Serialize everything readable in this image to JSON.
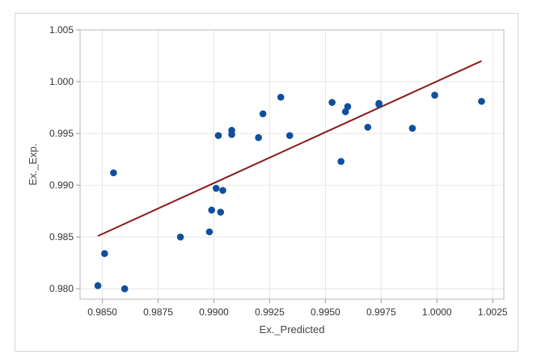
{
  "chart_data": {
    "type": "scatter",
    "xlabel": "Ex._Predicted",
    "ylabel": "Ex._Exp.",
    "xlim": [
      0.984,
      1.003
    ],
    "ylim": [
      0.979,
      1.005
    ],
    "x_ticks": [
      0.985,
      0.9875,
      0.99,
      0.9925,
      0.995,
      0.9975,
      1.0,
      1.0025
    ],
    "x_tick_labels": [
      "0.9850",
      "0.9875",
      "0.9900",
      "0.9925",
      "0.9950",
      "0.9975",
      "1.0000",
      "1.0025"
    ],
    "y_ticks": [
      0.98,
      0.985,
      0.99,
      0.995,
      1.0,
      1.005
    ],
    "y_tick_labels": [
      "0.980",
      "0.985",
      "0.990",
      "0.995",
      "1.000",
      "1.005"
    ],
    "grid": true,
    "legend": "none",
    "point_color": "#0f4f9c",
    "line_color": "#8b1a1a",
    "points": [
      {
        "x": 0.9848,
        "y": 0.9803
      },
      {
        "x": 0.9851,
        "y": 0.9834
      },
      {
        "x": 0.9855,
        "y": 0.9912
      },
      {
        "x": 0.986,
        "y": 0.98
      },
      {
        "x": 0.9885,
        "y": 0.985
      },
      {
        "x": 0.9898,
        "y": 0.9855
      },
      {
        "x": 0.9899,
        "y": 0.9876
      },
      {
        "x": 0.9901,
        "y": 0.9897
      },
      {
        "x": 0.9902,
        "y": 0.9948
      },
      {
        "x": 0.9903,
        "y": 0.9874
      },
      {
        "x": 0.9904,
        "y": 0.9895
      },
      {
        "x": 0.9908,
        "y": 0.9953
      },
      {
        "x": 0.9908,
        "y": 0.9949
      },
      {
        "x": 0.992,
        "y": 0.9946
      },
      {
        "x": 0.9922,
        "y": 0.9969
      },
      {
        "x": 0.993,
        "y": 0.9985
      },
      {
        "x": 0.9934,
        "y": 0.9948
      },
      {
        "x": 0.9953,
        "y": 0.998
      },
      {
        "x": 0.9957,
        "y": 0.9923
      },
      {
        "x": 0.9959,
        "y": 0.9971
      },
      {
        "x": 0.996,
        "y": 0.9976
      },
      {
        "x": 0.9969,
        "y": 0.9956
      },
      {
        "x": 0.9974,
        "y": 0.9979
      },
      {
        "x": 0.9974,
        "y": 0.9978
      },
      {
        "x": 0.9989,
        "y": 0.9955
      },
      {
        "x": 0.9999,
        "y": 0.9987
      },
      {
        "x": 1.002,
        "y": 0.9981
      }
    ],
    "fit_line": {
      "x": [
        0.9848,
        1.002
      ],
      "y": [
        0.9851,
        1.002
      ]
    }
  }
}
